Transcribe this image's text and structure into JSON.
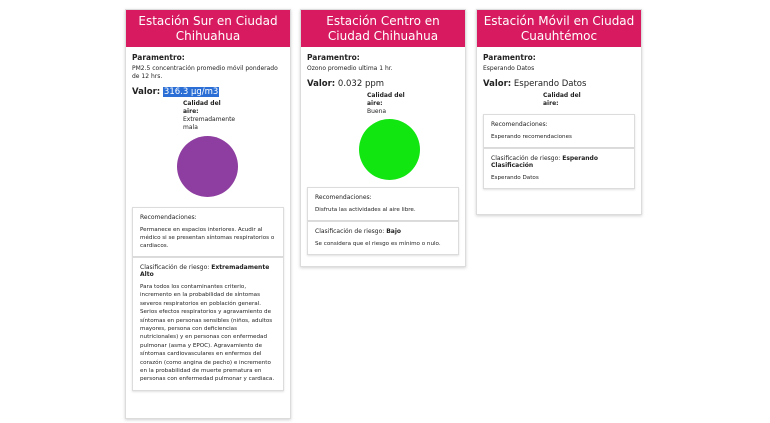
{
  "labels": {
    "param_title": "Paramentro:",
    "valor_label": "Valor:",
    "calidad_title": "Calidad del aire:",
    "rec_title": "Recomendaciones:",
    "risk_title": "Clasificación de riesgo:"
  },
  "cards": [
    {
      "title": "Estación Sur en Ciudad Chihuahua",
      "param_desc": "PM2.5 concentración promedio móvil ponderado de 12 hrs.",
      "value": "316.3 µg/m3",
      "calidad": "Extremadamente mala",
      "circle_color": "#8e3ea0",
      "recommendations": "Permanece en espacios interiores. Acudir al médico si se presentan síntomas respiratorios o cardiacos.",
      "risk_level": "Extremadamente Alto",
      "risk_desc": "Para todos los contaminantes criterio, incremento en la probabilidad de síntomas severos respiratorios en población general. Serios efectos respiratorios y agravamiento de síntomas en personas sensibles (niños, adultos mayores, persona con deficiencias nutricionales) y en personas con enfermedad pulmonar (asma y EPOC). Agravamiento de síntomas cardiovasculares en enfermos del corazón (como angina de pecho) e incremento en la probabilidad de muerte prematura en personas con enfermedad pulmonar y cardiaca."
    },
    {
      "title": "Estación Centro en Ciudad Chihuahua",
      "param_desc": "Ozono promedio ultima 1 hr.",
      "value": "0.032 ppm",
      "calidad": "Buena",
      "circle_color": "#11e611",
      "recommendations": "Disfruta las actividades al aire libre.",
      "risk_level": "Bajo",
      "risk_desc": "Se considera que el riesgo es mínimo o nulo."
    },
    {
      "title": "Estación Móvil en Ciudad Cuauhtémoc",
      "param_desc": "Esperando Datos",
      "value": "Esperando Datos",
      "calidad": "",
      "recommendations": "Esperando recomendaciones",
      "risk_level": "Esperando Clasificación",
      "risk_desc": "Esperando Datos"
    }
  ]
}
